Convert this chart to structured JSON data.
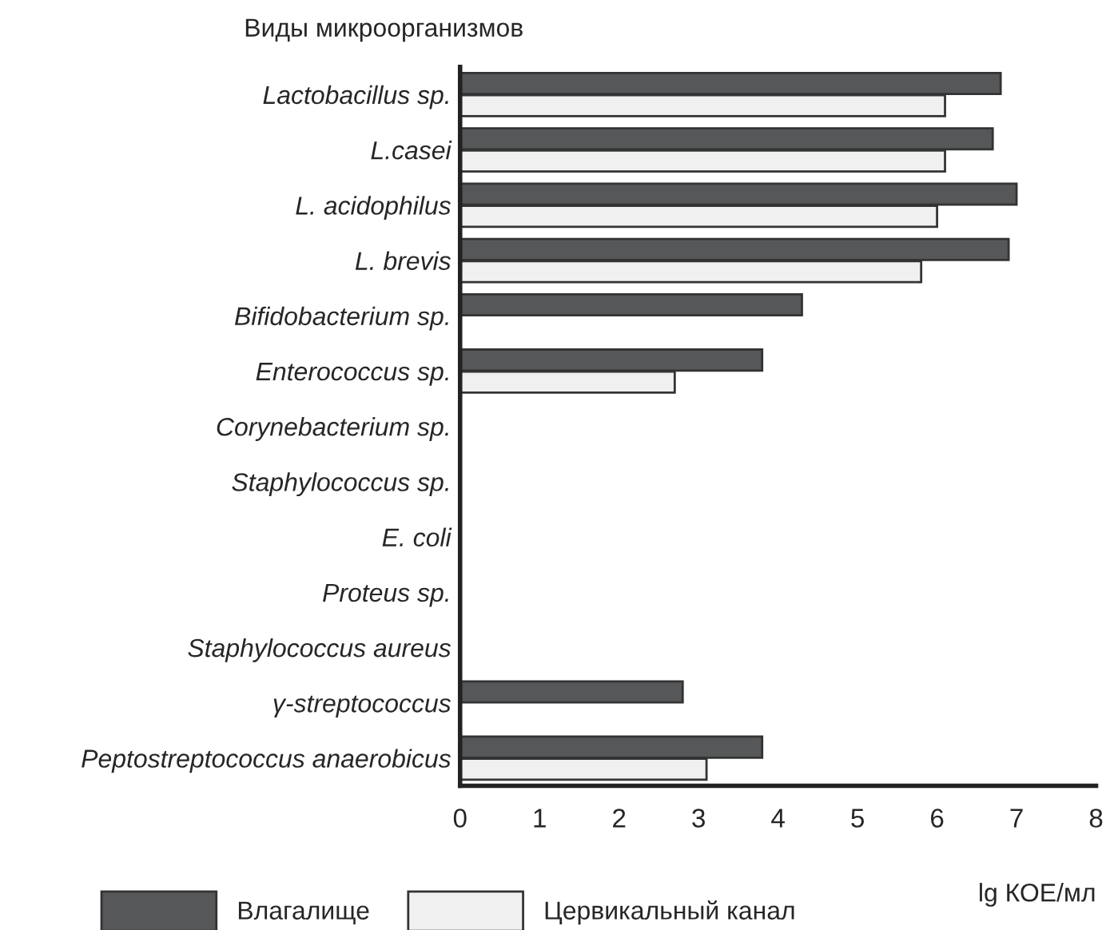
{
  "chart_data": {
    "type": "bar",
    "orientation": "horizontal",
    "title": "Виды микроорганизмов",
    "xlabel": "lg КОЕ/мл",
    "categories": [
      "Lactobacillus sp.",
      "L.casei",
      "L. acidophilus",
      "L. brevis",
      "Bifidobacterium sp.",
      "Enterococcus sp.",
      "Corynebacterium sp.",
      "Staphylococcus sp.",
      "E. coli",
      "Proteus sp.",
      "Staphylococcus aureus",
      "γ-streptococcus",
      "Peptostreptococcus anaerobicus"
    ],
    "series": [
      {
        "name": "Влагалище",
        "color": "#555759",
        "values": [
          6.8,
          6.7,
          7.0,
          6.9,
          4.3,
          3.8,
          null,
          null,
          null,
          null,
          null,
          2.8,
          3.8
        ]
      },
      {
        "name": "Цервикальный канал",
        "color": "#f0f0f0",
        "values": [
          6.1,
          6.1,
          6.0,
          5.8,
          null,
          2.7,
          null,
          null,
          null,
          null,
          null,
          null,
          3.1
        ]
      }
    ],
    "xlim": [
      0,
      8
    ],
    "xticks": [
      0,
      1,
      2,
      3,
      4,
      5,
      6,
      7,
      8
    ],
    "grid": false,
    "legend": "bottom"
  }
}
